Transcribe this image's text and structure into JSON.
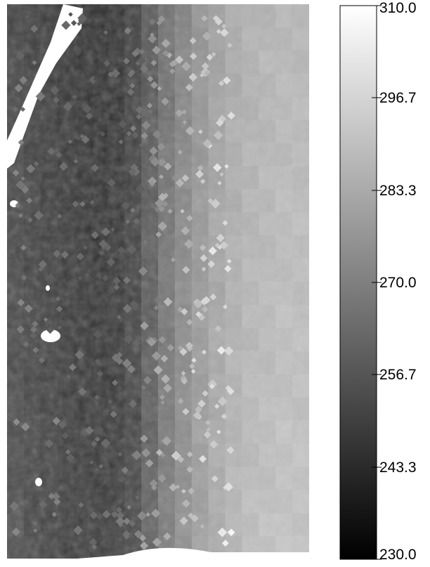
{
  "chart_data": {
    "type": "heatmap",
    "title": "",
    "xlabel": "",
    "ylabel": "",
    "colormap": "grayscale",
    "colormap_low_color": "#000000",
    "colormap_high_color": "#ffffff",
    "no_data_color": "#ffffff",
    "value_range": [
      230.0,
      310.0
    ],
    "colorbar": {
      "position": "right",
      "ticks": [
        310.0,
        296.7,
        283.3,
        270.0,
        256.7,
        243.3,
        230.0
      ],
      "tick_labels": [
        "310.0",
        "296.7",
        "283.3",
        "270.0",
        "256.7",
        "243.3",
        "230.0"
      ]
    },
    "grid": false,
    "field": {
      "description_of_values": "left band ~250, dark channel ~245, transition ~265-275, right region ~285-290",
      "approx_column_values": [
        252,
        250,
        249,
        247,
        246,
        245,
        246,
        250,
        258,
        266,
        272,
        277,
        281,
        284,
        286,
        287,
        288,
        288
      ],
      "row_bottom_value_offset": 4
    }
  }
}
